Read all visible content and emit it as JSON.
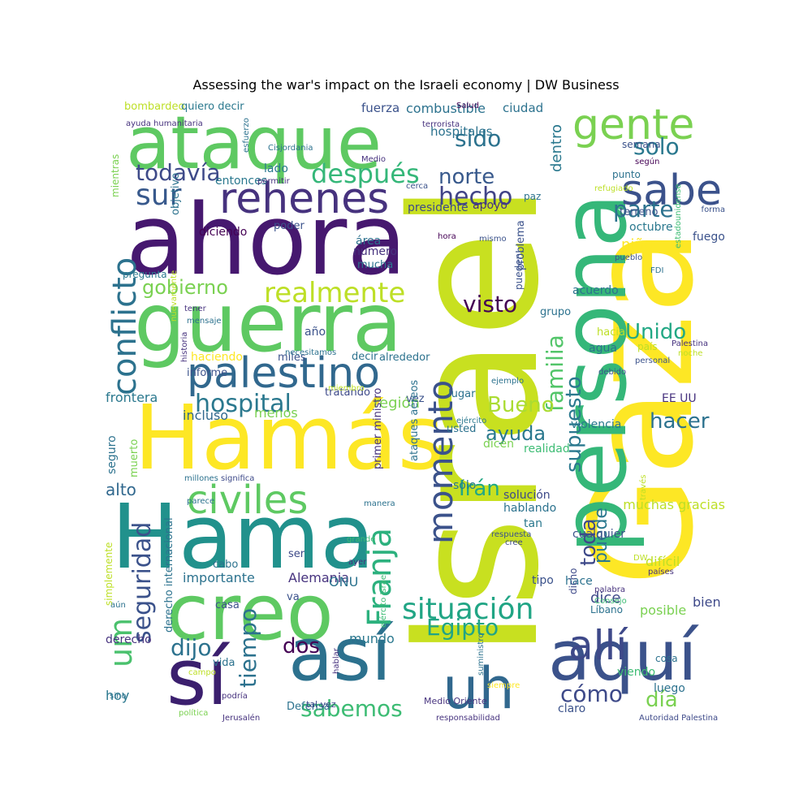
{
  "title": "Assessing the war's impact on the Israeli economy | DW Business",
  "words": [
    {
      "text": "Israel",
      "color": "#c8e020",
      "rot": 1
    },
    {
      "text": "Gaza",
      "color": "#fde725",
      "rot": 1
    },
    {
      "text": "ahora",
      "color": "#46186f",
      "rot": 0
    },
    {
      "text": "Hama",
      "color": "#21918c",
      "rot": 0
    },
    {
      "text": "Hamás",
      "color": "#fde725",
      "rot": 0
    },
    {
      "text": "persona",
      "color": "#35b779",
      "rot": 1
    },
    {
      "text": "guerra",
      "color": "#5ec962",
      "rot": 0
    },
    {
      "text": "ataque",
      "color": "#5ec962",
      "rot": 0
    },
    {
      "text": "creo",
      "color": "#5ec962",
      "rot": 0
    },
    {
      "text": "sí",
      "color": "#3b1f6e",
      "rot": 0
    },
    {
      "text": "así",
      "color": "#2c718e",
      "rot": 0
    },
    {
      "text": "aquí",
      "color": "#3b528b",
      "rot": 0
    },
    {
      "text": "uh",
      "color": "#31688e",
      "rot": 0
    },
    {
      "text": "rehenes",
      "color": "#46327e",
      "rot": 0
    },
    {
      "text": "palestino",
      "color": "#31688e",
      "rot": 0
    },
    {
      "text": "civiles",
      "color": "#5ec962",
      "rot": 0
    },
    {
      "text": "gente",
      "color": "#7ad151",
      "rot": 0
    },
    {
      "text": "sabe",
      "color": "#3b528b",
      "rot": 0
    },
    {
      "text": "realmente",
      "color": "#bddf26",
      "rot": 0
    },
    {
      "text": "conflicto",
      "color": "#2c728e",
      "rot": 1
    },
    {
      "text": "Franja",
      "color": "#2cb17e",
      "rot": 1
    },
    {
      "text": "momento",
      "color": "#3b528b",
      "rot": 1
    },
    {
      "text": "situación",
      "color": "#21a585",
      "rot": 0
    },
    {
      "text": "allí",
      "color": "#3e4989",
      "rot": 0
    },
    {
      "text": "todavía",
      "color": "#3e4a89",
      "rot": 0
    },
    {
      "text": "sur",
      "color": "#38598c",
      "rot": 0
    },
    {
      "text": "después",
      "color": "#35b779",
      "rot": 0
    },
    {
      "text": "hospital",
      "color": "#2a788e",
      "rot": 0
    },
    {
      "text": "norte",
      "color": "#38598c",
      "rot": 0
    },
    {
      "text": "hecho",
      "color": "#414487",
      "rot": 0
    },
    {
      "text": "sido",
      "color": "#2c728e",
      "rot": 0
    },
    {
      "text": "solo",
      "color": "#2a788e",
      "rot": 0
    },
    {
      "text": "parte",
      "color": "#2c728e",
      "rot": 0
    },
    {
      "text": "Unido",
      "color": "#22a884",
      "rot": 0
    },
    {
      "text": "visto",
      "color": "#440154",
      "rot": 0
    },
    {
      "text": "gobierno",
      "color": "#7ad151",
      "rot": 0
    },
    {
      "text": "supuesto",
      "color": "#2a788e",
      "rot": 1
    },
    {
      "text": "familia",
      "color": "#52c569",
      "rot": 1
    },
    {
      "text": "Bueno",
      "color": "#aadc32",
      "rot": 0
    },
    {
      "text": "ayuda",
      "color": "#2a788e",
      "rot": 0
    },
    {
      "text": "hacer",
      "color": "#2c728e",
      "rot": 0
    },
    {
      "text": "Egipto",
      "color": "#20a486",
      "rot": 0
    },
    {
      "text": "um",
      "color": "#4ac16d",
      "rot": 1
    },
    {
      "text": "seguridad",
      "color": "#3b528b",
      "rot": 1
    },
    {
      "text": "dijo",
      "color": "#2c728e",
      "rot": 0
    },
    {
      "text": "dos",
      "color": "#440154",
      "rot": 0
    },
    {
      "text": "tiempo",
      "color": "#2c728e",
      "rot": 1
    },
    {
      "text": "sabemos",
      "color": "#3dbc74",
      "rot": 0
    },
    {
      "text": "cómo",
      "color": "#3e4a89",
      "rot": 0
    },
    {
      "text": "día",
      "color": "#7ad151",
      "rot": 0
    },
    {
      "text": "toda",
      "color": "#3e4989",
      "rot": 1
    },
    {
      "text": "puede",
      "color": "#2a788e",
      "rot": 1
    },
    {
      "text": "Irán",
      "color": "#22a884",
      "rot": 0
    },
    {
      "text": "alto",
      "color": "#31688e",
      "rot": 0
    },
    {
      "text": "dice",
      "color": "#3e4a89",
      "rot": 0
    },
    {
      "text": "niño",
      "color": "#fde725",
      "rot": 0
    },
    {
      "text": "dentro",
      "color": "#2a788e",
      "rot": 1
    },
    {
      "text": "región",
      "color": "#7ad151",
      "rot": 0
    },
    {
      "text": "menos",
      "color": "#7ad151",
      "rot": 0
    },
    {
      "text": "incluso",
      "color": "#31688e",
      "rot": 0
    },
    {
      "text": "frontera",
      "color": "#2a788e",
      "rot": 0
    },
    {
      "text": "importante",
      "color": "#2c728e",
      "rot": 0
    },
    {
      "text": "Alemania",
      "color": "#46327e",
      "rot": 0
    },
    {
      "text": "ONU",
      "color": "#2c728e",
      "rot": 0
    },
    {
      "text": "difícil",
      "color": "#bddf26",
      "rot": 0
    },
    {
      "text": "muchas gracias",
      "color": "#bddf26",
      "rot": 0
    },
    {
      "text": "posible",
      "color": "#7ad151",
      "rot": 0
    },
    {
      "text": "bien",
      "color": "#3e4989",
      "rot": 0
    },
    {
      "text": "hoy",
      "color": "#2a788e",
      "rot": 0
    },
    {
      "text": "mundo",
      "color": "#2a788e",
      "rot": 0
    },
    {
      "text": "combustible",
      "color": "#2c728e",
      "rot": 0
    },
    {
      "text": "fuerza",
      "color": "#3b528b",
      "rot": 0
    },
    {
      "text": "ciudad",
      "color": "#2c728e",
      "rot": 0
    },
    {
      "text": "hospitales",
      "color": "#2c728e",
      "rot": 0
    },
    {
      "text": "entonces",
      "color": "#2a788e",
      "rot": 0
    },
    {
      "text": "lado",
      "color": "#2a788e",
      "rot": 0
    },
    {
      "text": "apoyo",
      "color": "#46327e",
      "rot": 0
    },
    {
      "text": "presidente",
      "color": "#3e4a89",
      "rot": 0
    },
    {
      "text": "octubre",
      "color": "#2a788e",
      "rot": 0
    },
    {
      "text": "terreno",
      "color": "#3b528b",
      "rot": 0
    },
    {
      "text": "fuego",
      "color": "#3b528b",
      "rot": 0
    },
    {
      "text": "acuerdo",
      "color": "#2c728e",
      "rot": 0
    },
    {
      "text": "agua",
      "color": "#2c728e",
      "rot": 0
    },
    {
      "text": "derecho",
      "color": "#46327e",
      "rot": 0
    },
    {
      "text": "EE UU",
      "color": "#46327e",
      "rot": 0
    },
    {
      "text": "violencia",
      "color": "#2a788e",
      "rot": 0
    },
    {
      "text": "realidad",
      "color": "#3dbc74",
      "rot": 0
    },
    {
      "text": "año",
      "color": "#3b528b",
      "rot": 0
    },
    {
      "text": "decir",
      "color": "#2c728e",
      "rot": 0
    },
    {
      "text": "alrededor",
      "color": "#2c728e",
      "rot": 0
    },
    {
      "text": "tratando",
      "color": "#3e4a89",
      "rot": 0
    },
    {
      "text": "lugar",
      "color": "#2c728e",
      "rot": 0
    },
    {
      "text": "usted",
      "color": "#2c728e",
      "rot": 0
    },
    {
      "text": "dicen",
      "color": "#7ad151",
      "rot": 0
    },
    {
      "text": "sólo",
      "color": "#2a788e",
      "rot": 0
    },
    {
      "text": "solución",
      "color": "#3e4a89",
      "rot": 0
    },
    {
      "text": "hablando",
      "color": "#2c728e",
      "rot": 0
    },
    {
      "text": "tan",
      "color": "#2a788e",
      "rot": 0
    },
    {
      "text": "cualquier",
      "color": "#3b528b",
      "rot": 0
    },
    {
      "text": "tipo",
      "color": "#3b528b",
      "rot": 0
    },
    {
      "text": "hace",
      "color": "#2c728e",
      "rot": 0
    },
    {
      "text": "viendo",
      "color": "#3dbc74",
      "rot": 0
    },
    {
      "text": "luego",
      "color": "#2c728e",
      "rot": 0
    },
    {
      "text": "claro",
      "color": "#3b528b",
      "rot": 0
    },
    {
      "text": "Defensa",
      "color": "#2c728e",
      "rot": 0
    },
    {
      "text": "casa",
      "color": "#3b528b",
      "rot": 0
    },
    {
      "text": "vida",
      "color": "#2c728e",
      "rot": 0
    },
    {
      "text": "ser",
      "color": "#3e4a89",
      "rot": 0
    },
    {
      "text": "cabo",
      "color": "#2c728e",
      "rot": 0
    },
    {
      "text": "va",
      "color": "#3b528b",
      "rot": 0
    },
    {
      "text": "seguro",
      "color": "#2c728e",
      "rot": 1
    },
    {
      "text": "muerto",
      "color": "#7ad151",
      "rot": 1
    },
    {
      "text": "informe",
      "color": "#3b528b",
      "rot": 0
    },
    {
      "text": "haciendo",
      "color": "#fde725",
      "rot": 0
    },
    {
      "text": "miles",
      "color": "#3b528b",
      "rot": 0
    },
    {
      "text": "poder",
      "color": "#3b528b",
      "rot": 0
    },
    {
      "text": "objetivo",
      "color": "#2c728e",
      "rot": 1
    },
    {
      "text": "diciendo",
      "color": "#440154",
      "rot": 0
    },
    {
      "text": "área",
      "color": "#2c728e",
      "rot": 0
    },
    {
      "text": "número",
      "color": "#46327e",
      "rot": 0
    },
    {
      "text": "mucha",
      "color": "#2c728e",
      "rot": 0
    },
    {
      "text": "grupo",
      "color": "#2c728e",
      "rot": 0
    },
    {
      "text": "hacia",
      "color": "#bddf26",
      "rot": 0
    },
    {
      "text": "país",
      "color": "#bddf26",
      "rot": 0
    },
    {
      "text": "pueden",
      "color": "#3b528b",
      "rot": 1
    },
    {
      "text": "problema",
      "color": "#3b528b",
      "rot": 1
    },
    {
      "text": "paz",
      "color": "#2c728e",
      "rot": 0
    },
    {
      "text": "vez",
      "color": "#3b528b",
      "rot": 0
    },
    {
      "text": "primer ministro",
      "color": "#46327e",
      "rot": 1
    },
    {
      "text": "ataques aéreos",
      "color": "#2c728e",
      "rot": 1
    },
    {
      "text": "derecho internacional",
      "color": "#2c728e",
      "rot": 1
    },
    {
      "text": "simplemente",
      "color": "#bddf26",
      "rot": 1
    },
    {
      "text": "bombardeo",
      "color": "#bddf26",
      "rot": 0
    },
    {
      "text": "quiero decir",
      "color": "#2a788e",
      "rot": 0
    },
    {
      "text": "mientras",
      "color": "#7ad151",
      "rot": 1
    },
    {
      "text": "pregunta",
      "color": "#2a788e",
      "rot": 0
    },
    {
      "text": "semana",
      "color": "#3b528b",
      "rot": 0
    },
    {
      "text": "punto",
      "color": "#2c728e",
      "rot": 0
    },
    {
      "text": "tener",
      "color": "#46327e",
      "rot": 0
    },
    {
      "text": "mensaje",
      "color": "#2c728e",
      "rot": 0
    },
    {
      "text": "millones",
      "color": "#2c728e",
      "rot": 0
    },
    {
      "text": "significa",
      "color": "#3e4a89",
      "rot": 0
    },
    {
      "text": "parece",
      "color": "#2c728e",
      "rot": 0
    },
    {
      "text": "tal vez",
      "color": "#3e4a89",
      "rot": 0
    },
    {
      "text": "dicho",
      "color": "#3e4a89",
      "rot": 1
    },
    {
      "text": "Líbano",
      "color": "#2c728e",
      "rot": 0
    },
    {
      "text": "cosa",
      "color": "#2c728e",
      "rot": 0
    },
    {
      "text": "política",
      "color": "#7ad151",
      "rot": 0
    },
    {
      "text": "Jerusalén",
      "color": "#46327e",
      "rot": 0
    },
    {
      "text": "responsabilidad",
      "color": "#46327e",
      "rot": 0
    },
    {
      "text": "Autoridad Palestina",
      "color": "#3e4a89",
      "rot": 0
    },
    {
      "text": "Medio Oriente",
      "color": "#46327e",
      "rot": 0
    },
    {
      "text": "ejército Israel",
      "color": "#3dbc74",
      "rot": 1
    },
    {
      "text": "ayuda humanitaria",
      "color": "#46327e",
      "rot": 0
    },
    {
      "text": "terrorista",
      "color": "#46327e",
      "rot": 0
    },
    {
      "text": "Salud",
      "color": "#440154",
      "rot": 0
    },
    {
      "text": "Medio",
      "color": "#46327e",
      "rot": 0
    },
    {
      "text": "permitir",
      "color": "#46327e",
      "rot": 0
    },
    {
      "text": "cerca",
      "color": "#3b528b",
      "rot": 0
    },
    {
      "text": "refugiado",
      "color": "#bddf26",
      "rot": 0
    },
    {
      "text": "según",
      "color": "#440154",
      "rot": 0
    },
    {
      "text": "forma",
      "color": "#3b528b",
      "rot": 0
    },
    {
      "text": "pueblo",
      "color": "#3b528b",
      "rot": 0
    },
    {
      "text": "estadounidense",
      "color": "#3dbc74",
      "rot": 1
    },
    {
      "text": "FDI",
      "color": "#2c728e",
      "rot": 0
    },
    {
      "text": "Palestina",
      "color": "#46327e",
      "rot": 0
    },
    {
      "text": "noche",
      "color": "#bddf26",
      "rot": 0
    },
    {
      "text": "personal",
      "color": "#3b528b",
      "rot": 0
    },
    {
      "text": "debido",
      "color": "#3b528b",
      "rot": 0
    },
    {
      "text": "ejemplo",
      "color": "#2c728e",
      "rot": 0
    },
    {
      "text": "miembro",
      "color": "#bddf26",
      "rot": 0
    },
    {
      "text": "nuevamente",
      "color": "#bddf26",
      "rot": 1
    },
    {
      "text": "Cisjordania",
      "color": "#2c728e",
      "rot": 0
    },
    {
      "text": "esfuerzo",
      "color": "#2c728e",
      "rot": 1
    },
    {
      "text": "necesitamos",
      "color": "#2c728e",
      "rot": 0
    },
    {
      "text": "historia",
      "color": "#46327e",
      "rot": 1
    },
    {
      "text": "hora",
      "color": "#440154",
      "rot": 0
    },
    {
      "text": "mismo",
      "color": "#3b528b",
      "rot": 0
    },
    {
      "text": "ejército",
      "color": "#2a788e",
      "rot": 0
    },
    {
      "text": "través",
      "color": "#bddf26",
      "rot": 1
    },
    {
      "text": "DW",
      "color": "#bddf26",
      "rot": 0
    },
    {
      "text": "cree",
      "color": "#3e4a89",
      "rot": 0
    },
    {
      "text": "respuesta",
      "color": "#3b528b",
      "rot": 0
    },
    {
      "text": "palabra",
      "color": "#46327e",
      "rot": 0
    },
    {
      "text": "Consejo",
      "color": "#3dbc74",
      "rot": 0
    },
    {
      "text": "países",
      "color": "#46327e",
      "rot": 0
    },
    {
      "text": "aún",
      "color": "#2c728e",
      "rot": 0
    },
    {
      "text": "ayer",
      "color": "#46327e",
      "rot": 0
    },
    {
      "text": "grande",
      "color": "#3dbc74",
      "rot": 0
    },
    {
      "text": "manera",
      "color": "#2c728e",
      "rot": 0
    },
    {
      "text": "siempre",
      "color": "#fde725",
      "rot": 0
    },
    {
      "text": "suministro",
      "color": "#2c728e",
      "rot": 1
    },
    {
      "text": "hablar",
      "color": "#46327e",
      "rot": 1
    },
    {
      "text": "campo",
      "color": "#bddf26",
      "rot": 0
    },
    {
      "text": "podría",
      "color": "#46327e",
      "rot": 0
    },
    {
      "text": "sino",
      "color": "#2c728e",
      "rot": 0
    },
    {
      "text": "ver",
      "color": "#46327e",
      "rot": 0
    },
    {
      "text": "mañana",
      "color": "#fde725",
      "rot": 0
    },
    {
      "text": "gran",
      "color": "#3dbc74",
      "rot": 0
    },
    {
      "text": "bajo",
      "color": "#2c728e",
      "rot": 0
    }
  ]
}
